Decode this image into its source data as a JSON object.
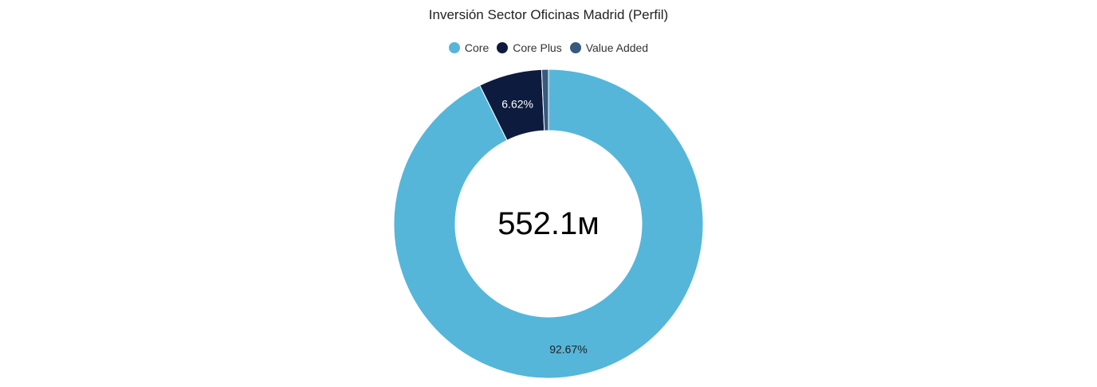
{
  "chart_data": {
    "type": "pie",
    "variant": "donut",
    "title": "Inversión Sector Oficinas Madrid (Perfil)",
    "center_total": "552.1м",
    "legend_position": "top",
    "series": [
      {
        "name": "Perfil",
        "categories": [
          "Core",
          "Core Plus",
          "Value Added"
        ],
        "values": [
          92.67,
          6.62,
          0.71
        ],
        "colors": [
          "#55b6da",
          "#0d1b3e",
          "#355a7e"
        ],
        "data_labels": [
          "92.67%",
          "6.62%",
          ""
        ],
        "label_colors": [
          "#222222",
          "#ffffff",
          "#ffffff"
        ]
      }
    ]
  }
}
